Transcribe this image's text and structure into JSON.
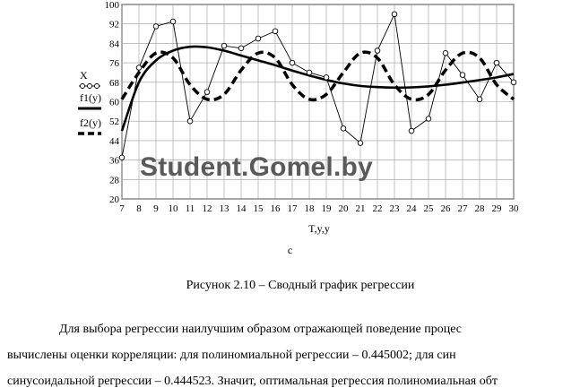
{
  "chart_data": {
    "type": "line",
    "xlabel": "T,y,y",
    "xlim": [
      7,
      30
    ],
    "ylim": [
      20,
      100
    ],
    "x_ticks": [
      7,
      8,
      9,
      10,
      11,
      12,
      13,
      14,
      15,
      16,
      17,
      18,
      19,
      20,
      21,
      22,
      23,
      24,
      25,
      26,
      27,
      28,
      29,
      30
    ],
    "y_ticks": [
      20,
      28,
      36,
      44,
      52,
      60,
      68,
      76,
      84,
      92,
      100
    ],
    "grid": true,
    "legend_position": "left",
    "series": [
      {
        "name": "X",
        "style": "thin line with circle markers",
        "x": [
          7,
          8,
          9,
          10,
          11,
          12,
          13,
          14,
          15,
          16,
          17,
          18,
          19,
          20,
          21,
          22,
          23,
          24,
          25,
          26,
          27,
          28,
          29,
          30
        ],
        "values": [
          37,
          74,
          91,
          93,
          52,
          64,
          83,
          82,
          86,
          89,
          76,
          72,
          70,
          49,
          43,
          81,
          96,
          48,
          53,
          80,
          71,
          61,
          76,
          68
        ]
      },
      {
        "name": "f1(y)",
        "style": "thick solid line",
        "x": [
          7,
          8,
          9,
          10,
          11,
          12,
          13,
          14,
          15,
          16,
          17,
          18,
          19,
          20,
          21,
          22,
          23,
          24,
          25,
          26,
          27,
          28,
          29,
          30
        ],
        "values": [
          48,
          68,
          77,
          81,
          82.6,
          82.4,
          81,
          79,
          77,
          75,
          72.8,
          70.8,
          69,
          67.5,
          66.5,
          66,
          65.8,
          65.9,
          66.3,
          67,
          67.9,
          68.9,
          70,
          71.4
        ]
      },
      {
        "name": "f2(y)",
        "style": "thick dashed line",
        "x": [
          7,
          8,
          9,
          10,
          11,
          12,
          13,
          14,
          15,
          16,
          17,
          18,
          19,
          20,
          21,
          22,
          23,
          24,
          25,
          26,
          27,
          28,
          29,
          30
        ],
        "values": [
          61,
          72,
          80,
          78,
          67,
          61,
          63,
          73,
          80,
          78,
          67,
          61,
          63,
          72,
          80,
          78,
          67,
          61,
          63,
          73,
          80,
          78,
          67,
          61
        ]
      }
    ]
  },
  "subtag": "c",
  "watermark": "Student.Gomel.by",
  "caption": "Рисунок 2.10 – Сводный график регрессии",
  "paragraph": {
    "line1": "Для выбора регрессии наилучшим образом отражающей поведение процес",
    "line2": "вычислены оценки корреляции: для полиномиальной регрессии – 0.445002; для син",
    "line3": "синусоидальной регрессии – 0.444523. Значит, оптимальная регрессия полиномиальная обт"
  }
}
